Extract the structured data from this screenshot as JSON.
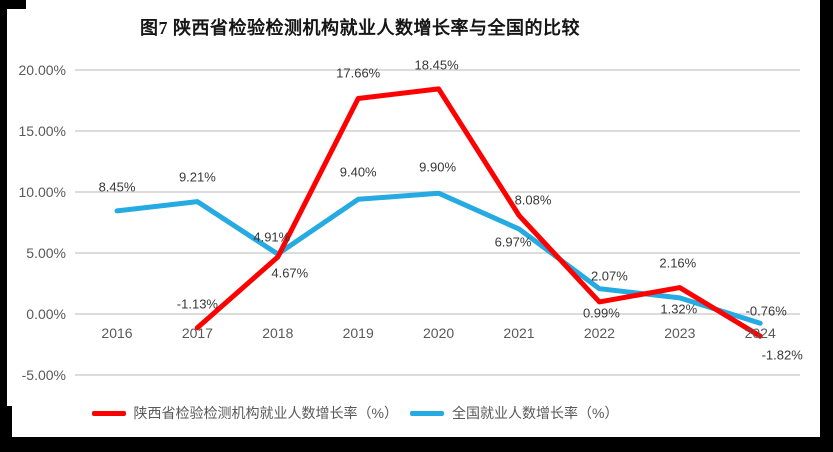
{
  "title": "图7 陕西省检验检测机构就业人数增长率与全国的比较",
  "colors": {
    "shaanxi_red": "#fe0000",
    "national_blue": "#25aae1",
    "gridline": "#dcdcdc",
    "tick_text": "#595959",
    "data_label_text": "#383838"
  },
  "chart_data": {
    "type": "line",
    "title": "图7 陕西省检验检测机构就业人数增长率与全国的比较",
    "categories": [
      "2016",
      "2017",
      "2018",
      "2019",
      "2020",
      "2021",
      "2022",
      "2023",
      "2024"
    ],
    "y_ticks": [
      "20.00%",
      "15.00%",
      "10.00%",
      "5.00%",
      "0.00%",
      "-5.00%"
    ],
    "y_tick_values": [
      20,
      15,
      10,
      5,
      0,
      -5
    ],
    "ylim": [
      -5,
      20
    ],
    "grid": true,
    "legend_position": "bottom",
    "series": [
      {
        "name": "陕西省检验检测机构就业人数增长率（%）",
        "color": "#fe0000",
        "start_category": "2017",
        "start_index": 1,
        "values": [
          -1.13,
          4.67,
          17.66,
          18.45,
          8.08,
          0.99,
          2.16,
          -1.82
        ],
        "labels": [
          "-1.13%",
          "4.67%",
          "17.66%",
          "18.45%",
          "8.08%",
          "0.99%",
          "2.16%",
          "-1.82%"
        ]
      },
      {
        "name": "全国就业人数增长率（%）",
        "color": "#25aae1",
        "start_category": "2016",
        "start_index": 0,
        "values": [
          8.45,
          9.21,
          4.91,
          9.4,
          9.9,
          6.97,
          2.07,
          1.32,
          -0.76
        ],
        "labels": [
          "8.45%",
          "9.21%",
          "4.91%",
          "9.40%",
          "9.90%",
          "6.97%",
          "2.07%",
          "1.32%",
          "-0.76%"
        ]
      }
    ]
  }
}
